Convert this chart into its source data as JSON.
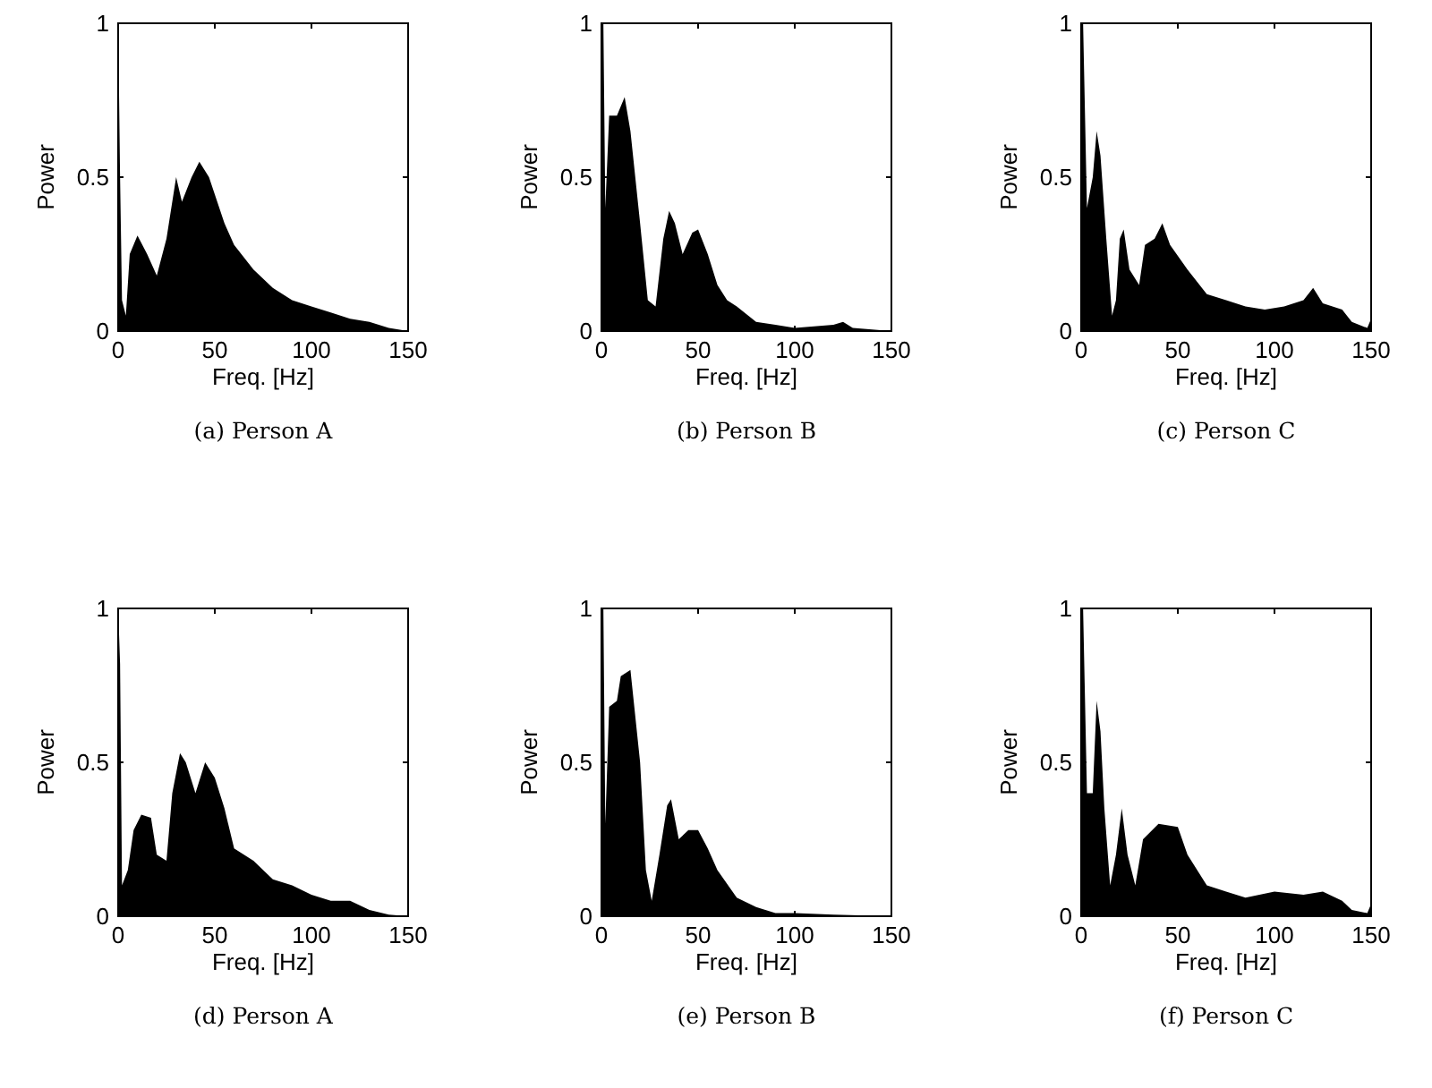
{
  "chart_data": [
    {
      "type": "area",
      "title": "(a) Person A",
      "xlabel": "Freq. [Hz]",
      "ylabel": "Power",
      "xlim": [
        0,
        150
      ],
      "ylim": [
        0,
        1
      ],
      "xticks": [
        0,
        50,
        100,
        150
      ],
      "yticks": [
        0,
        0.5,
        1
      ],
      "grid": false,
      "series": [
        {
          "color": "#000000",
          "x": [
            0,
            1,
            2,
            4,
            6,
            10,
            15,
            20,
            25,
            30,
            33,
            38,
            42,
            47,
            55,
            60,
            70,
            80,
            90,
            100,
            110,
            120,
            130,
            140,
            150
          ],
          "values": [
            1.0,
            0.5,
            0.1,
            0.05,
            0.25,
            0.31,
            0.25,
            0.18,
            0.3,
            0.5,
            0.42,
            0.5,
            0.55,
            0.5,
            0.35,
            0.28,
            0.2,
            0.14,
            0.1,
            0.08,
            0.06,
            0.04,
            0.03,
            0.01,
            0
          ]
        }
      ]
    },
    {
      "type": "area",
      "title": "(b) Person B",
      "xlabel": "Freq. [Hz]",
      "ylabel": "Power",
      "xlim": [
        0,
        150
      ],
      "ylim": [
        0,
        1
      ],
      "xticks": [
        0,
        50,
        100,
        150
      ],
      "yticks": [
        0,
        0.5,
        1
      ],
      "grid": false,
      "series": [
        {
          "color": "#000000",
          "x": [
            0,
            1,
            2,
            4,
            8,
            12,
            15,
            20,
            24,
            28,
            32,
            35,
            38,
            42,
            47,
            50,
            55,
            60,
            65,
            70,
            80,
            90,
            100,
            120,
            125,
            130,
            150
          ],
          "values": [
            1.0,
            1.0,
            0.4,
            0.7,
            0.7,
            0.76,
            0.65,
            0.35,
            0.1,
            0.08,
            0.3,
            0.39,
            0.35,
            0.25,
            0.32,
            0.33,
            0.25,
            0.15,
            0.1,
            0.08,
            0.03,
            0.02,
            0.01,
            0.02,
            0.03,
            0.01,
            0
          ]
        }
      ]
    },
    {
      "type": "area",
      "title": "(c) Person C",
      "xlabel": "Freq. [Hz]",
      "ylabel": "Power",
      "xlim": [
        0,
        150
      ],
      "ylim": [
        0,
        1
      ],
      "xticks": [
        0,
        50,
        100,
        150
      ],
      "yticks": [
        0,
        0.5,
        1
      ],
      "grid": false,
      "series": [
        {
          "color": "#000000",
          "x": [
            0,
            1,
            3,
            6,
            8,
            10,
            13,
            16,
            18,
            20,
            22,
            25,
            30,
            33,
            38,
            42,
            46,
            55,
            65,
            75,
            85,
            95,
            105,
            115,
            120,
            125,
            135,
            140,
            148,
            150
          ],
          "values": [
            1.0,
            1.0,
            0.4,
            0.5,
            0.65,
            0.57,
            0.3,
            0.05,
            0.1,
            0.3,
            0.33,
            0.2,
            0.15,
            0.28,
            0.3,
            0.35,
            0.28,
            0.2,
            0.12,
            0.1,
            0.08,
            0.07,
            0.08,
            0.1,
            0.14,
            0.09,
            0.07,
            0.03,
            0.01,
            0.04
          ]
        }
      ]
    },
    {
      "type": "area",
      "title": "(d) Person A",
      "xlabel": "Freq. [Hz]",
      "ylabel": "Power",
      "xlim": [
        0,
        150
      ],
      "ylim": [
        0,
        1
      ],
      "xticks": [
        0,
        50,
        100,
        150
      ],
      "yticks": [
        0,
        0.5,
        1
      ],
      "grid": false,
      "series": [
        {
          "color": "#000000",
          "x": [
            0,
            1,
            2,
            5,
            8,
            12,
            17,
            20,
            25,
            28,
            32,
            35,
            40,
            45,
            50,
            55,
            60,
            70,
            80,
            90,
            100,
            110,
            120,
            130,
            140,
            150
          ],
          "values": [
            1.0,
            0.82,
            0.1,
            0.15,
            0.28,
            0.33,
            0.32,
            0.2,
            0.18,
            0.4,
            0.53,
            0.5,
            0.4,
            0.5,
            0.45,
            0.35,
            0.22,
            0.18,
            0.12,
            0.1,
            0.07,
            0.05,
            0.05,
            0.02,
            0.005,
            0
          ]
        }
      ]
    },
    {
      "type": "area",
      "title": "(e) Person B",
      "xlabel": "Freq. [Hz]",
      "ylabel": "Power",
      "xlim": [
        0,
        150
      ],
      "ylim": [
        0,
        1
      ],
      "xticks": [
        0,
        50,
        100,
        150
      ],
      "yticks": [
        0,
        0.5,
        1
      ],
      "grid": false,
      "series": [
        {
          "color": "#000000",
          "x": [
            0,
            1,
            2,
            4,
            8,
            10,
            15,
            20,
            23,
            26,
            30,
            34,
            36,
            40,
            45,
            50,
            55,
            60,
            70,
            80,
            90,
            100,
            120,
            150
          ],
          "values": [
            1.0,
            1.0,
            0.3,
            0.68,
            0.7,
            0.78,
            0.8,
            0.5,
            0.15,
            0.05,
            0.2,
            0.36,
            0.38,
            0.25,
            0.28,
            0.28,
            0.22,
            0.15,
            0.06,
            0.03,
            0.01,
            0.01,
            0.005,
            0
          ]
        }
      ]
    },
    {
      "type": "area",
      "title": "(f) Person C",
      "xlabel": "Freq. [Hz]",
      "ylabel": "Power",
      "xlim": [
        0,
        150
      ],
      "ylim": [
        0,
        1
      ],
      "xticks": [
        0,
        50,
        100,
        150
      ],
      "yticks": [
        0,
        0.5,
        1
      ],
      "grid": false,
      "series": [
        {
          "color": "#000000",
          "x": [
            0,
            1,
            3,
            6,
            8,
            10,
            12,
            15,
            18,
            21,
            24,
            28,
            32,
            40,
            50,
            55,
            65,
            75,
            85,
            100,
            115,
            125,
            135,
            140,
            148,
            150
          ],
          "values": [
            1.0,
            1.0,
            0.4,
            0.4,
            0.7,
            0.6,
            0.35,
            0.1,
            0.2,
            0.35,
            0.2,
            0.1,
            0.25,
            0.3,
            0.29,
            0.2,
            0.1,
            0.08,
            0.06,
            0.08,
            0.07,
            0.08,
            0.05,
            0.02,
            0.01,
            0.04
          ]
        }
      ]
    }
  ]
}
